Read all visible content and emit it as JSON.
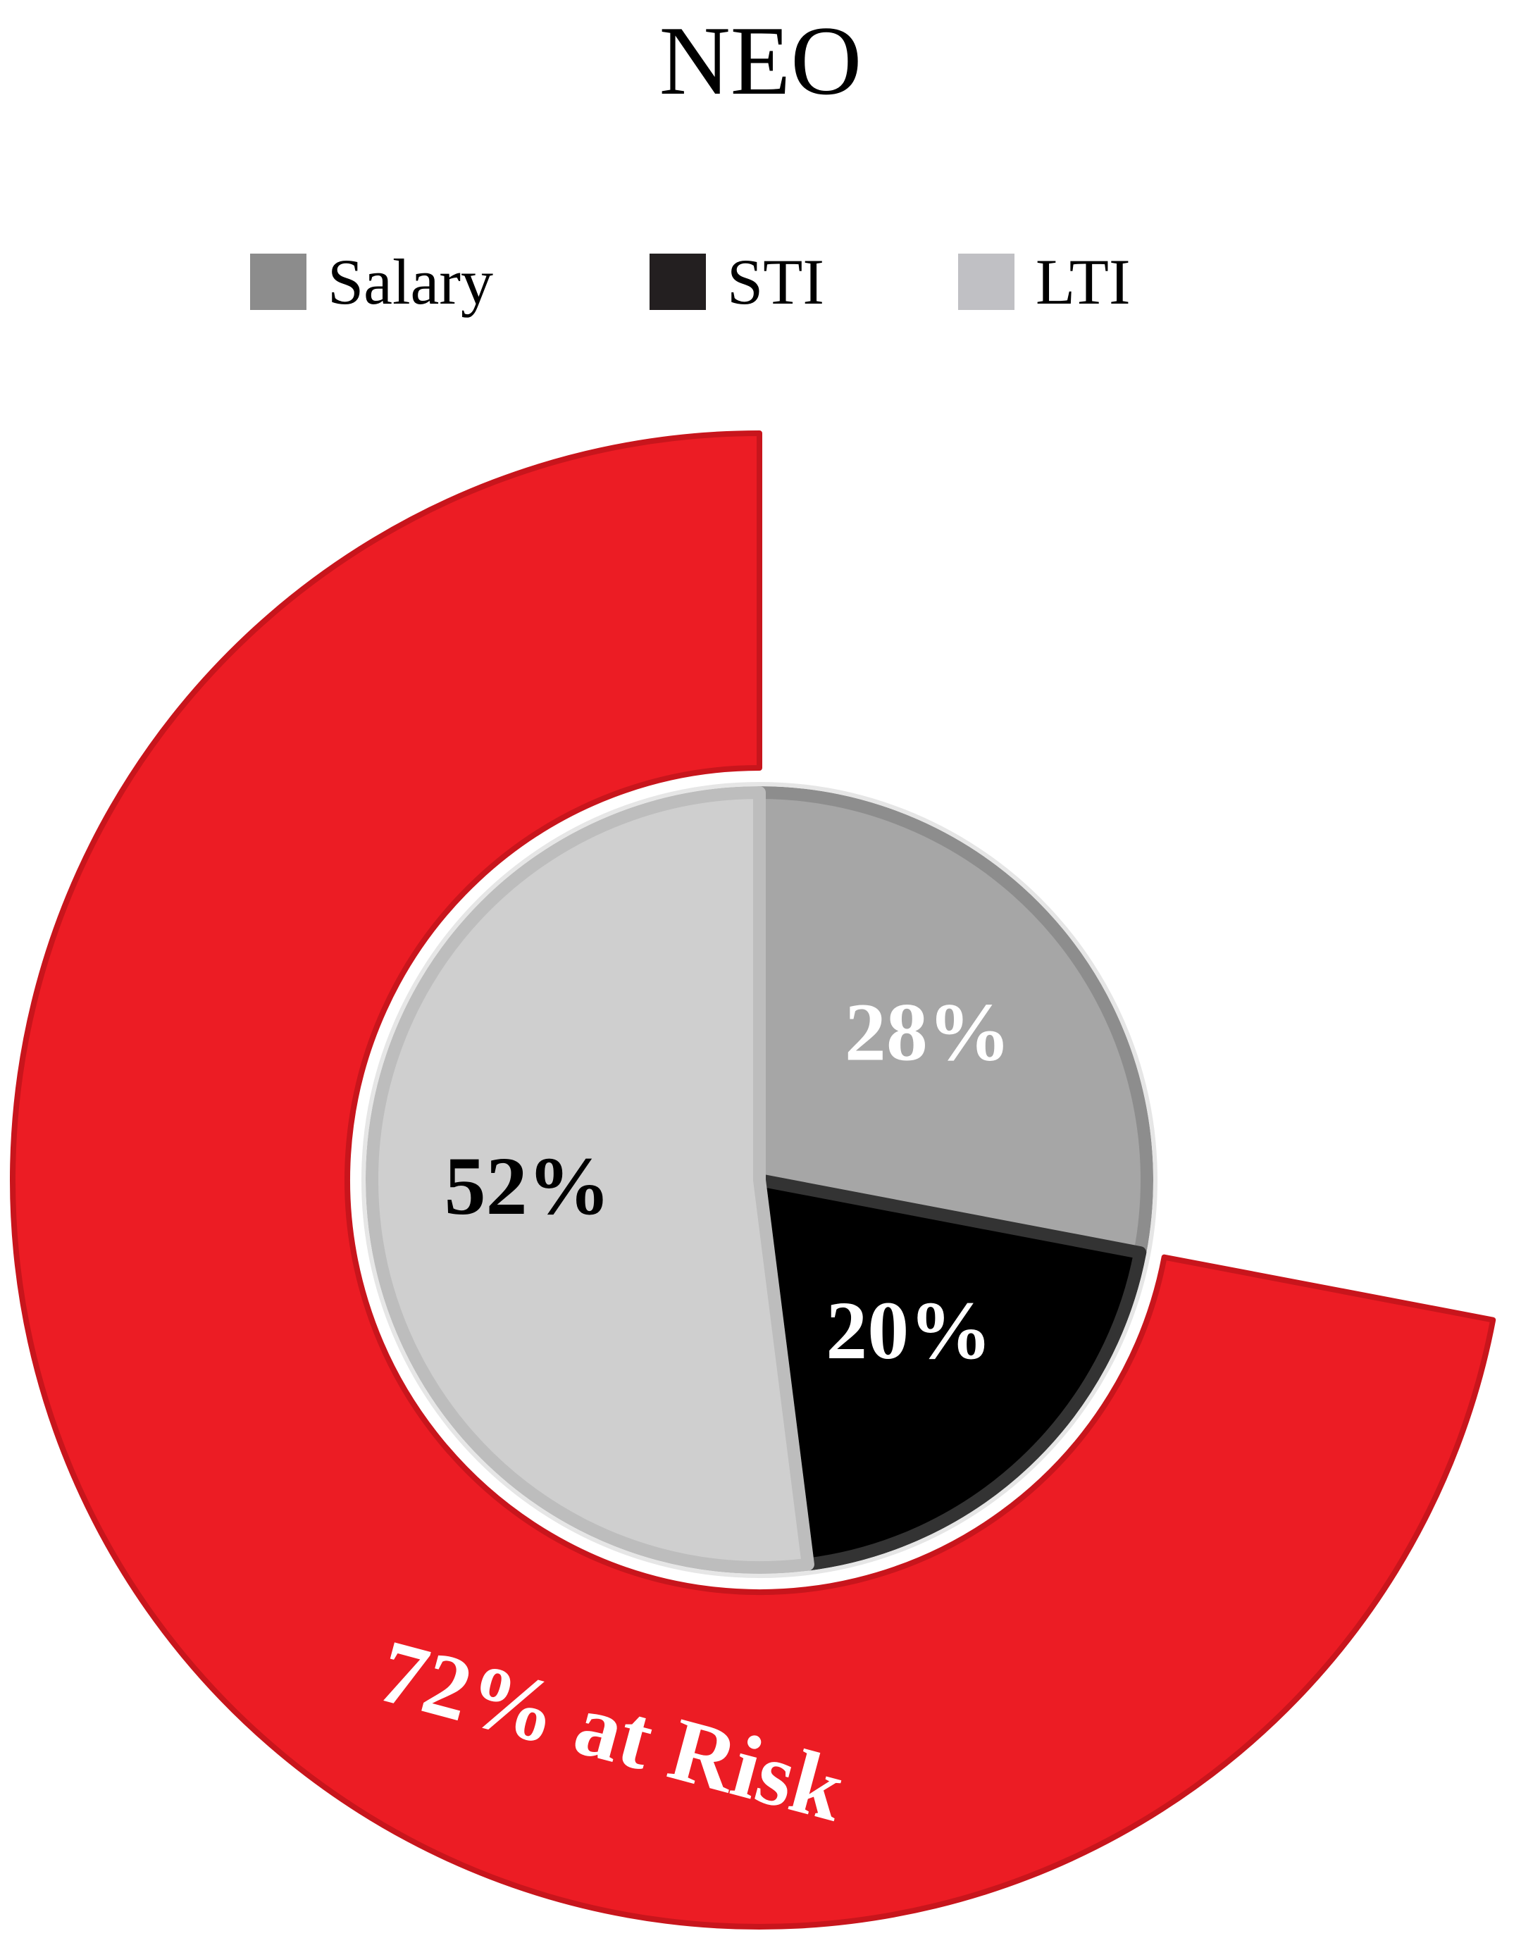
{
  "chart_data": {
    "type": "pie",
    "title": "NEO",
    "legend_position": "top",
    "categories": [
      "Salary",
      "STI",
      "LTI"
    ],
    "values": [
      28,
      20,
      52
    ],
    "value_labels": [
      "28%",
      "20%",
      "52%"
    ],
    "colors": [
      "#a6a6a6",
      "#000000",
      "#cfcfcf"
    ],
    "label_colors": [
      "#ffffff",
      "#ffffff",
      "#000000"
    ],
    "at_risk": {
      "value": 72,
      "label": "72% at Risk",
      "color": "#ec1c24"
    }
  }
}
